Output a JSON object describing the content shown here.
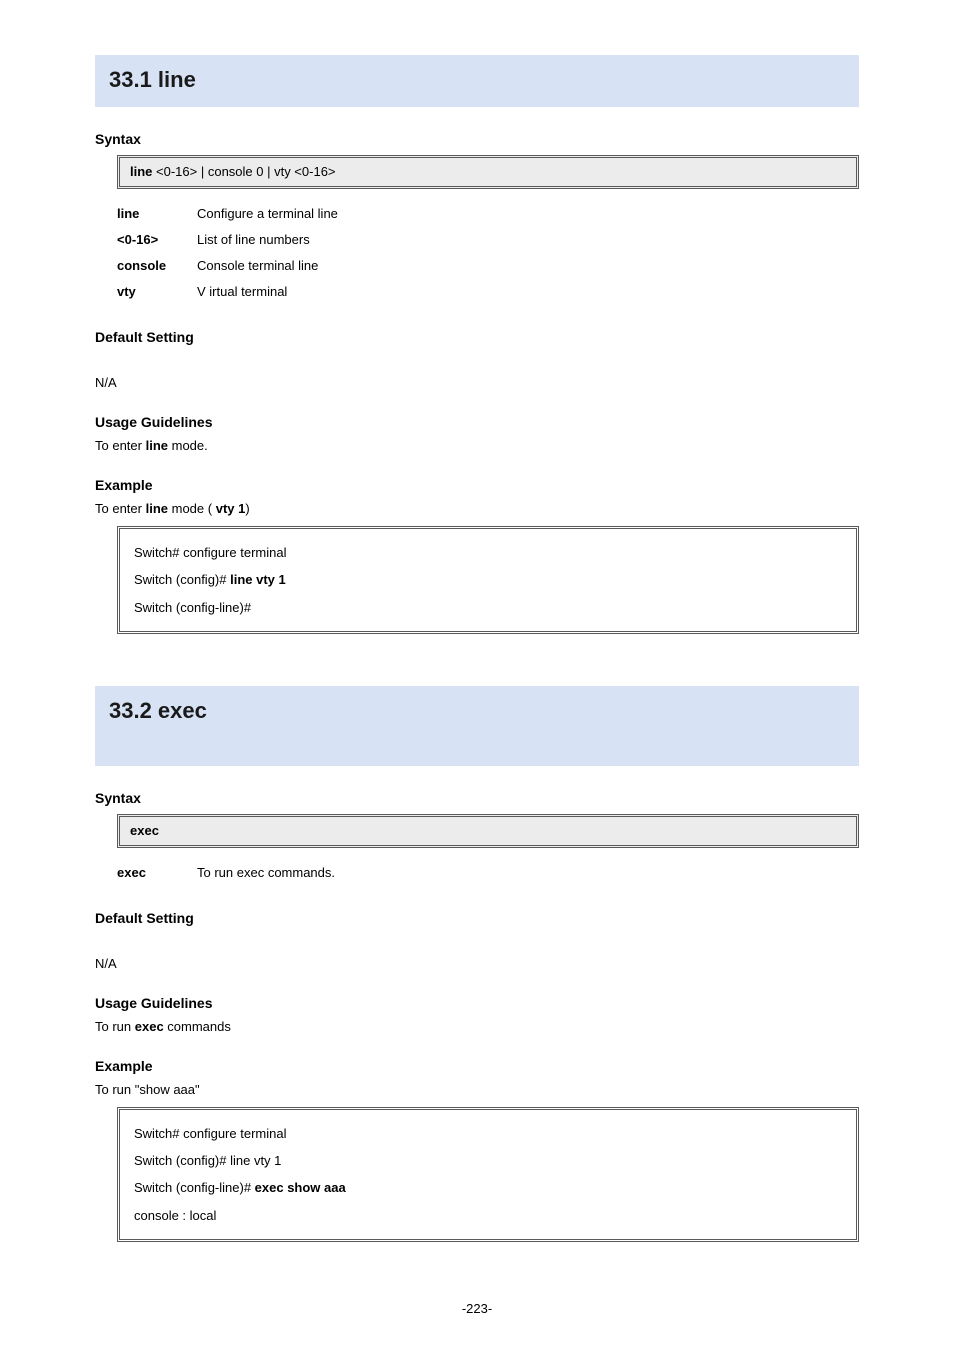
{
  "section1": {
    "banner_text": "33.1 line",
    "syntax_heading": "Syntax",
    "syntax_left": "line",
    "syntax_right": "<0-16> | console 0 | vty  <0-16>",
    "params": [
      {
        "key": "line",
        "text": "Configure a terminal line"
      },
      {
        "key": "<0-16>",
        "text": "List  of line numbers"
      },
      {
        "key": "console",
        "text": "Console terminal line"
      },
      {
        "key": "vty",
        "text": "V irtual terminal"
      }
    ],
    "default_heading": "Default Setting",
    "default_text": "N/A",
    "usage_heading": "Usage Guidelines",
    "usage_text_pre": "To enter",
    "usage_text_bold": " line ",
    "usage_text_post": "mode.",
    "example_heading": "Example",
    "example_text_pre": "To enter ",
    "example_text_bold": "line",
    "example_text_mid": " mode",
    "example_text_paren_l": "(",
    "example_text_bold2": " vty 1",
    "example_text_paren_r": ")",
    "code": [
      {
        "pre": "Switch# configure terminal",
        "bold": ""
      },
      {
        "pre": "Switch (config)#",
        "bold": " line vty 1"
      },
      {
        "pre": "Switch (config-line)#",
        "bold": ""
      }
    ]
  },
  "section2": {
    "banner_text": "33.2 exec",
    "syntax_heading": "Syntax",
    "syntax_text": "exec",
    "params": [
      {
        "key": "exec",
        "text": "To run exec commands."
      }
    ],
    "default_heading": "Default Setting",
    "default_text": "N/A",
    "usage_heading": "Usage Guidelines",
    "usage_text_pre": "To run ",
    "usage_text_bold": "exec",
    "usage_text_post": " commands",
    "example_heading": "Example",
    "example_text_pre": "To run \"show aaa\"",
    "code": [
      {
        "pre": "Switch# configure terminal",
        "bold": ""
      },
      {
        "pre": "Switch (config)# line vty 1",
        "bold": ""
      },
      {
        "pre": "Switch (config-line)#",
        "bold": " exec show aaa"
      },
      {
        "pre": "console : local",
        "bold": ""
      }
    ]
  },
  "page_number": "-223-",
  "colors": {
    "banner_bg": "#d7e3f4",
    "gray_bg": "#ececec",
    "border": "#5a5a5a",
    "text": "#000000"
  }
}
